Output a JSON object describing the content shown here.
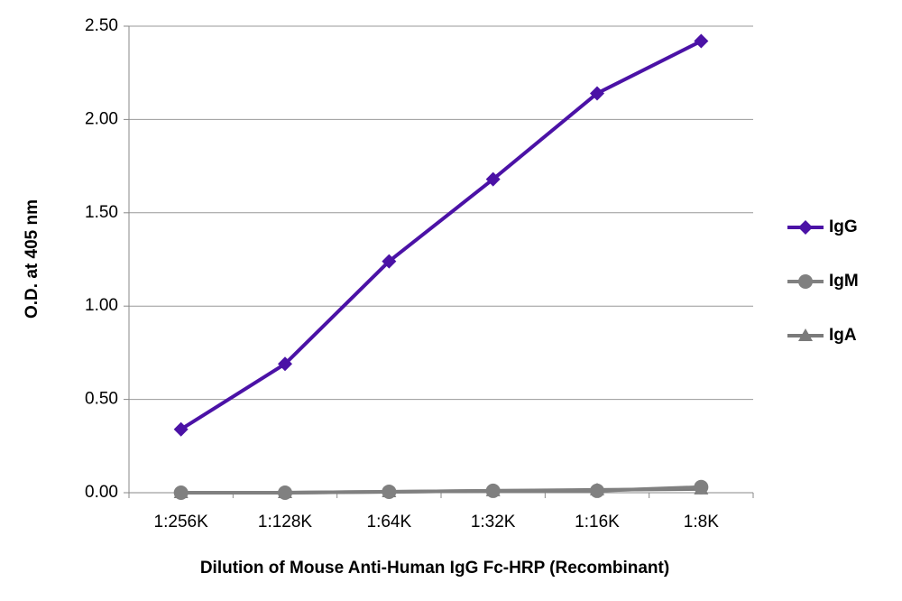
{
  "chart_data": {
    "type": "line",
    "y_label": "O.D. at 405 nm",
    "x_label": "Dilution of Mouse Anti-Human IgG Fc-HRP (Recombinant)",
    "categories": [
      "1:256K",
      "1:128K",
      "1:64K",
      "1:32K",
      "1:16K",
      "1:8K"
    ],
    "series": [
      {
        "name": "IgG",
        "color": "#4b12a6",
        "marker": "diamond",
        "values": [
          0.34,
          0.69,
          1.24,
          1.68,
          2.14,
          2.42
        ]
      },
      {
        "name": "IgM",
        "color": "#808080",
        "marker": "circle",
        "values": [
          0.0,
          0.0,
          0.005,
          0.01,
          0.01,
          0.03
        ]
      },
      {
        "name": "IgA",
        "color": "#7a7a7a",
        "marker": "triangle",
        "values": [
          0.0,
          0.0,
          0.005,
          0.01,
          0.015,
          0.02
        ]
      }
    ],
    "ylim": [
      0,
      2.5
    ],
    "yticks": [
      {
        "value": 0,
        "label": "0.00"
      },
      {
        "value": 0.5,
        "label": "0.50"
      },
      {
        "value": 1,
        "label": "1.00"
      },
      {
        "value": 1.5,
        "label": "1.50"
      },
      {
        "value": 2,
        "label": "2.00"
      },
      {
        "value": 2.5,
        "label": "2.50"
      }
    ],
    "grid": true,
    "legend": "right"
  }
}
